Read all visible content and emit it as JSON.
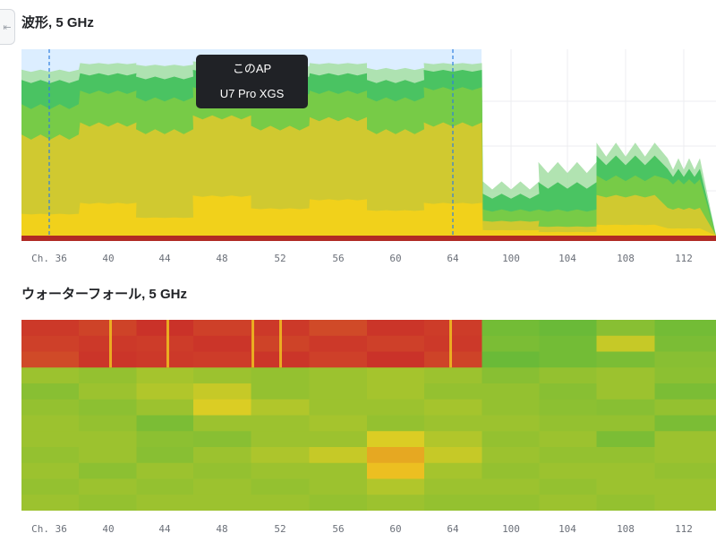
{
  "header": {
    "waveform_title": "波形, 5 GHz",
    "waterfall_title": "ウォーターフォール, 5 GHz",
    "back_icon": "arrow-left-to-bar-icon"
  },
  "tooltip": {
    "line1": "このAP",
    "line2": "U7 Pro XGS"
  },
  "chart_data": [
    {
      "type": "area",
      "title": "波形, 5 GHz",
      "x_labels": [
        "Ch. 36",
        "40",
        "44",
        "48",
        "52",
        "56",
        "60",
        "64",
        "100",
        "104",
        "108",
        "112"
      ],
      "x_channels": [
        36,
        40,
        44,
        48,
        52,
        56,
        60,
        64,
        100,
        104,
        108,
        112
      ],
      "highlight_range": [
        36,
        64
      ],
      "ylim": [
        0,
        100
      ],
      "grid": true,
      "series": [
        {
          "values": [
            12,
            18,
            10,
            22,
            15,
            20,
            14,
            18,
            3,
            2,
            6,
            4
          ],
          "color": "#f4d21a"
        },
        {
          "values": [
            55,
            62,
            58,
            66,
            60,
            65,
            58,
            62,
            8,
            5,
            22,
            15
          ],
          "color": "#d9c92e"
        },
        {
          "values": [
            72,
            80,
            76,
            82,
            78,
            80,
            76,
            82,
            14,
            14,
            32,
            30
          ],
          "color": "#7ccc45"
        },
        {
          "values": [
            86,
            90,
            88,
            92,
            88,
            90,
            86,
            92,
            22,
            28,
            42,
            35
          ],
          "color": "#3fc05a"
        },
        {
          "values": [
            92,
            96,
            95,
            97,
            94,
            96,
            93,
            96,
            28,
            38,
            48,
            40
          ],
          "color": "#a8e0a9"
        }
      ]
    },
    {
      "type": "heatmap",
      "title": "ウォーターフォール, 5 GHz",
      "x_labels": [
        "Ch. 36",
        "40",
        "44",
        "48",
        "52",
        "56",
        "60",
        "64",
        "100",
        "104",
        "108",
        "112"
      ],
      "x_channels": [
        36,
        40,
        44,
        48,
        52,
        56,
        60,
        64,
        100,
        104,
        108,
        112
      ],
      "rows": 12,
      "values": [
        [
          0.95,
          0.92,
          0.97,
          0.93,
          0.95,
          0.9,
          0.96,
          0.94,
          0.2,
          0.18,
          0.25,
          0.2
        ],
        [
          0.93,
          0.95,
          0.94,
          0.96,
          0.92,
          0.95,
          0.93,
          0.95,
          0.22,
          0.2,
          0.4,
          0.22
        ],
        [
          0.9,
          0.96,
          0.95,
          0.94,
          0.96,
          0.93,
          0.97,
          0.92,
          0.18,
          0.2,
          0.22,
          0.25
        ],
        [
          0.3,
          0.28,
          0.32,
          0.3,
          0.28,
          0.3,
          0.32,
          0.3,
          0.25,
          0.28,
          0.3,
          0.26
        ],
        [
          0.25,
          0.3,
          0.35,
          0.4,
          0.28,
          0.3,
          0.32,
          0.28,
          0.28,
          0.25,
          0.3,
          0.22
        ],
        [
          0.28,
          0.26,
          0.3,
          0.45,
          0.35,
          0.3,
          0.3,
          0.32,
          0.28,
          0.26,
          0.25,
          0.28
        ],
        [
          0.3,
          0.28,
          0.22,
          0.3,
          0.3,
          0.32,
          0.28,
          0.3,
          0.3,
          0.28,
          0.28,
          0.22
        ],
        [
          0.3,
          0.3,
          0.26,
          0.25,
          0.3,
          0.3,
          0.45,
          0.35,
          0.28,
          0.3,
          0.22,
          0.3
        ],
        [
          0.28,
          0.3,
          0.25,
          0.3,
          0.34,
          0.4,
          0.62,
          0.4,
          0.3,
          0.28,
          0.28,
          0.3
        ],
        [
          0.3,
          0.26,
          0.3,
          0.28,
          0.3,
          0.3,
          0.55,
          0.32,
          0.28,
          0.3,
          0.3,
          0.28
        ],
        [
          0.28,
          0.3,
          0.28,
          0.3,
          0.28,
          0.3,
          0.35,
          0.3,
          0.3,
          0.28,
          0.3,
          0.3
        ],
        [
          0.3,
          0.28,
          0.3,
          0.3,
          0.3,
          0.28,
          0.3,
          0.28,
          0.28,
          0.3,
          0.28,
          0.3
        ]
      ]
    }
  ],
  "colors": {
    "selection_fill": "#dceeff",
    "selection_border": "#2f7fe0",
    "baseline": "#b02a24",
    "grid": "#eceef1",
    "heat_low": "#1fae45",
    "heat_mid": "#f0d020",
    "heat_high": "#c8282a"
  }
}
